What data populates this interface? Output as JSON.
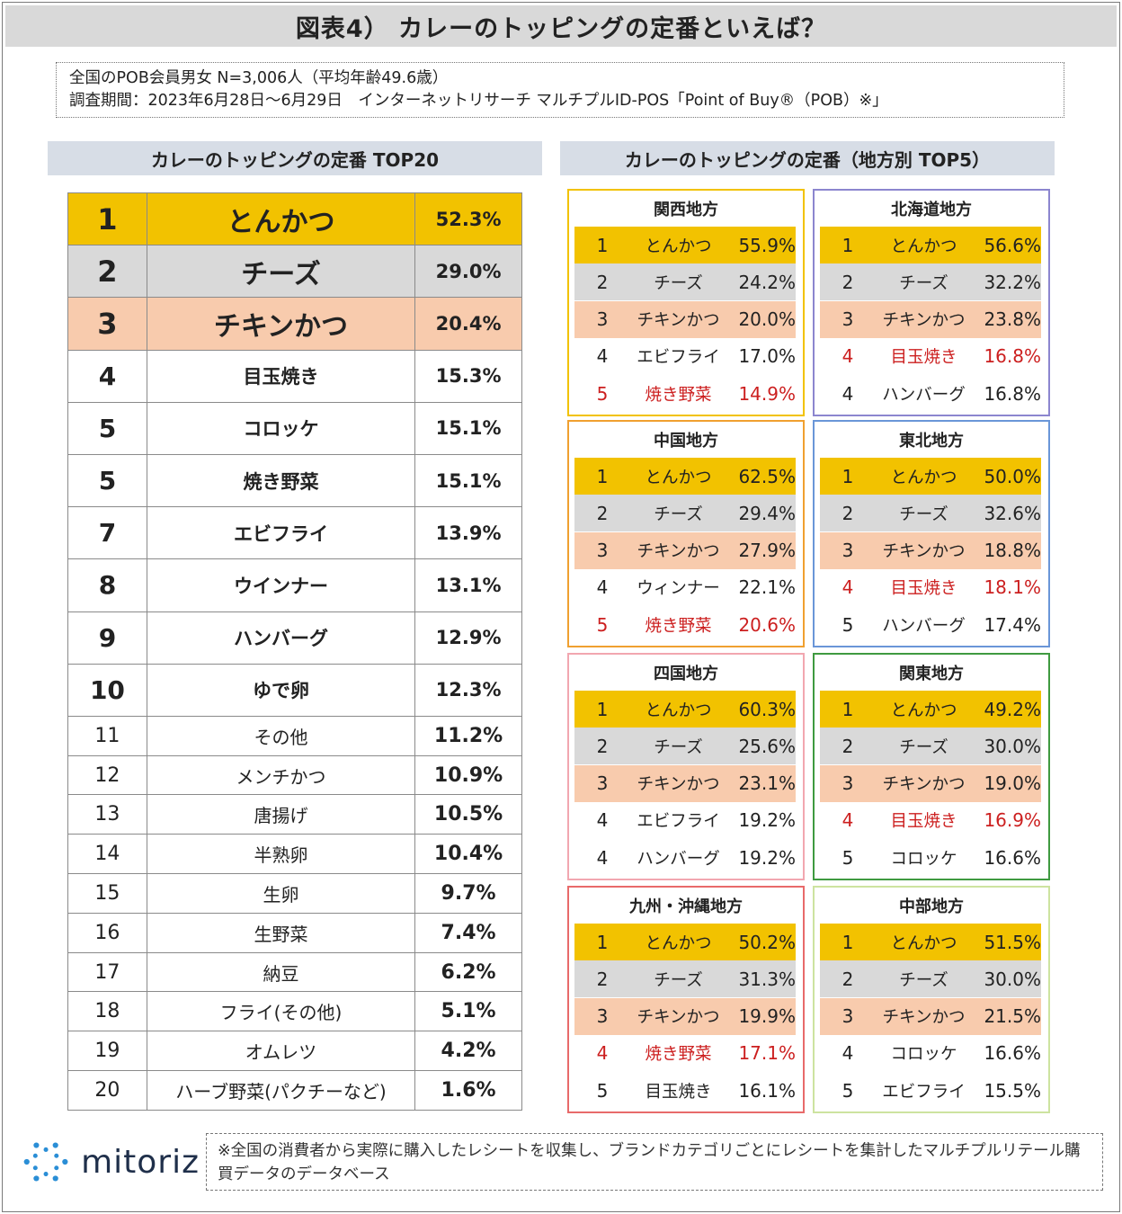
{
  "title": "図表4） カレーのトッピングの定番といえば？",
  "info": {
    "line1": "全国のPOB会員男女 N=3,006人（平均年齢49.6歳）",
    "line2": "調査期間：2023年6月28日～6月29日　インターネットリサーチ マルチプルID-POS「Point of Buy®（POB）※」"
  },
  "left_header": "カレーのトッピングの定番 TOP20",
  "right_header": "カレーのトッピングの定番（地方別 TOP5）",
  "top20": [
    {
      "rank": "1",
      "name": "とんかつ",
      "pct": "52.3%"
    },
    {
      "rank": "2",
      "name": "チーズ",
      "pct": "29.0%"
    },
    {
      "rank": "3",
      "name": "チキンかつ",
      "pct": "20.4%"
    },
    {
      "rank": "4",
      "name": "目玉焼き",
      "pct": "15.3%"
    },
    {
      "rank": "5",
      "name": "コロッケ",
      "pct": "15.1%"
    },
    {
      "rank": "5",
      "name": "焼き野菜",
      "pct": "15.1%"
    },
    {
      "rank": "7",
      "name": "エビフライ",
      "pct": "13.9%"
    },
    {
      "rank": "8",
      "name": "ウインナー",
      "pct": "13.1%"
    },
    {
      "rank": "9",
      "name": "ハンバーグ",
      "pct": "12.9%"
    },
    {
      "rank": "10",
      "name": "ゆで卵",
      "pct": "12.3%"
    },
    {
      "rank": "11",
      "name": "その他",
      "pct": "11.2%"
    },
    {
      "rank": "12",
      "name": "メンチかつ",
      "pct": "10.9%"
    },
    {
      "rank": "13",
      "name": "唐揚げ",
      "pct": "10.5%"
    },
    {
      "rank": "14",
      "name": "半熟卵",
      "pct": "10.4%"
    },
    {
      "rank": "15",
      "name": "生卵",
      "pct": "9.7%"
    },
    {
      "rank": "16",
      "name": "生野菜",
      "pct": "7.4%"
    },
    {
      "rank": "17",
      "name": "納豆",
      "pct": "6.2%"
    },
    {
      "rank": "18",
      "name": "フライ(その他)",
      "pct": "5.1%"
    },
    {
      "rank": "19",
      "name": "オムレツ",
      "pct": "4.2%"
    },
    {
      "rank": "20",
      "name": "ハーブ野菜(パクチーなど)",
      "pct": "1.6%"
    }
  ],
  "regions": [
    {
      "name": "関西地方",
      "border": "#f2c200",
      "rows": [
        {
          "rank": "1",
          "name": "とんかつ",
          "pct": "55.9%",
          "red": false
        },
        {
          "rank": "2",
          "name": "チーズ",
          "pct": "24.2%",
          "red": false
        },
        {
          "rank": "3",
          "name": "チキンかつ",
          "pct": "20.0%",
          "red": false
        },
        {
          "rank": "4",
          "name": "エビフライ",
          "pct": "17.0%",
          "red": false
        },
        {
          "rank": "5",
          "name": "焼き野菜",
          "pct": "14.9%",
          "red": true
        }
      ]
    },
    {
      "name": "北海道地方",
      "border": "#8c86cf",
      "rows": [
        {
          "rank": "1",
          "name": "とんかつ",
          "pct": "56.6%",
          "red": false
        },
        {
          "rank": "2",
          "name": "チーズ",
          "pct": "32.2%",
          "red": false
        },
        {
          "rank": "3",
          "name": "チキンかつ",
          "pct": "23.8%",
          "red": false
        },
        {
          "rank": "4",
          "name": "目玉焼き",
          "pct": "16.8%",
          "red": true
        },
        {
          "rank": "4",
          "name": "ハンバーグ",
          "pct": "16.8%",
          "red": false
        }
      ]
    },
    {
      "name": "中国地方",
      "border": "#f0a030",
      "rows": [
        {
          "rank": "1",
          "name": "とんかつ",
          "pct": "62.5%",
          "red": false
        },
        {
          "rank": "2",
          "name": "チーズ",
          "pct": "29.4%",
          "red": false
        },
        {
          "rank": "3",
          "name": "チキンかつ",
          "pct": "27.9%",
          "red": false
        },
        {
          "rank": "4",
          "name": "ウィンナー",
          "pct": "22.1%",
          "red": false
        },
        {
          "rank": "5",
          "name": "焼き野菜",
          "pct": "20.6%",
          "red": true
        }
      ]
    },
    {
      "name": "東北地方",
      "border": "#6a96d8",
      "rows": [
        {
          "rank": "1",
          "name": "とんかつ",
          "pct": "50.0%",
          "red": false
        },
        {
          "rank": "2",
          "name": "チーズ",
          "pct": "32.6%",
          "red": false
        },
        {
          "rank": "3",
          "name": "チキンかつ",
          "pct": "18.8%",
          "red": false
        },
        {
          "rank": "4",
          "name": "目玉焼き",
          "pct": "18.1%",
          "red": true
        },
        {
          "rank": "5",
          "name": "ハンバーグ",
          "pct": "17.4%",
          "red": false
        }
      ]
    },
    {
      "name": "四国地方",
      "border": "#f2a7b0",
      "rows": [
        {
          "rank": "1",
          "name": "とんかつ",
          "pct": "60.3%",
          "red": false
        },
        {
          "rank": "2",
          "name": "チーズ",
          "pct": "25.6%",
          "red": false
        },
        {
          "rank": "3",
          "name": "チキンかつ",
          "pct": "23.1%",
          "red": false
        },
        {
          "rank": "4",
          "name": "エビフライ",
          "pct": "19.2%",
          "red": false
        },
        {
          "rank": "4",
          "name": "ハンバーグ",
          "pct": "19.2%",
          "red": false
        }
      ]
    },
    {
      "name": "関東地方",
      "border": "#3f9a40",
      "rows": [
        {
          "rank": "1",
          "name": "とんかつ",
          "pct": "49.2%",
          "red": false
        },
        {
          "rank": "2",
          "name": "チーズ",
          "pct": "30.0%",
          "red": false
        },
        {
          "rank": "3",
          "name": "チキンかつ",
          "pct": "19.0%",
          "red": false
        },
        {
          "rank": "4",
          "name": "目玉焼き",
          "pct": "16.9%",
          "red": true
        },
        {
          "rank": "5",
          "name": "コロッケ",
          "pct": "16.6%",
          "red": false
        }
      ]
    },
    {
      "name": "九州・沖縄地方",
      "border": "#e86a6a",
      "rows": [
        {
          "rank": "1",
          "name": "とんかつ",
          "pct": "50.2%",
          "red": false
        },
        {
          "rank": "2",
          "name": "チーズ",
          "pct": "31.3%",
          "red": false
        },
        {
          "rank": "3",
          "name": "チキンかつ",
          "pct": "19.9%",
          "red": false
        },
        {
          "rank": "4",
          "name": "焼き野菜",
          "pct": "17.1%",
          "red": true
        },
        {
          "rank": "5",
          "name": "目玉焼き",
          "pct": "16.1%",
          "red": false
        }
      ]
    },
    {
      "name": "中部地方",
      "border": "#cde3a0",
      "rows": [
        {
          "rank": "1",
          "name": "とんかつ",
          "pct": "51.5%",
          "red": false
        },
        {
          "rank": "2",
          "name": "チーズ",
          "pct": "30.0%",
          "red": false
        },
        {
          "rank": "3",
          "name": "チキンかつ",
          "pct": "21.5%",
          "red": false
        },
        {
          "rank": "4",
          "name": "コロッケ",
          "pct": "16.6%",
          "red": false
        },
        {
          "rank": "5",
          "name": "エビフライ",
          "pct": "15.5%",
          "red": false
        }
      ]
    }
  ],
  "logo": {
    "text": "mitoriz",
    "icon": "sparkle-logo-icon",
    "color": "#2a8ed6"
  },
  "note": "※全国の消費者から実際に購入したレシートを収集し、ブランドカテゴリごとにレシートを集計したマルチプルリテール購買データのデータベース",
  "colors": {
    "gold": "#f2c200",
    "silver": "#d9d9d9",
    "bronze": "#f8cbad",
    "red_text": "#cc1f1f"
  }
}
